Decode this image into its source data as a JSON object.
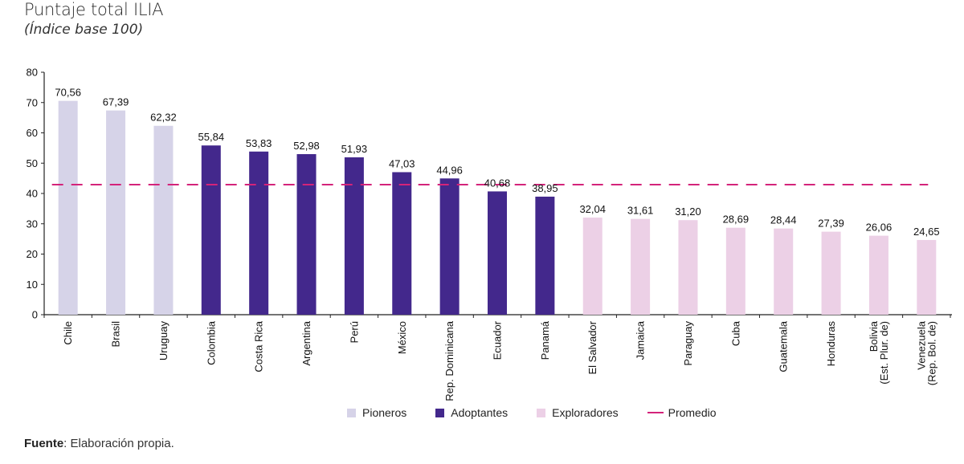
{
  "header": {
    "title": "Puntaje total ILIA",
    "subtitle": "(Índice base 100)"
  },
  "chart_data": {
    "type": "bar",
    "title": "Puntaje total ILIA",
    "subtitle": "(Índice base 100)",
    "xlabel": "",
    "ylabel": "",
    "ylim": [
      0,
      80
    ],
    "yticks": [
      0,
      10,
      20,
      30,
      40,
      50,
      60,
      70,
      80
    ],
    "grid": false,
    "categories": [
      "Chile",
      "Brasil",
      "Uruguay",
      "Colombia",
      "Costa Rica",
      "Argentina",
      "Perú",
      "México",
      "Rep. Dominicana",
      "Ecuador",
      "Panamá",
      "El Salvador",
      "Jamaica",
      "Paraguay",
      "Cuba",
      "Guatemala",
      "Honduras",
      "Bolivia (Est. Plur. de)",
      "Venezuela (Rep. Bol. de)"
    ],
    "category_lines": [
      [
        "Chile"
      ],
      [
        "Brasil"
      ],
      [
        "Uruguay"
      ],
      [
        "Colombia"
      ],
      [
        "Costa Rica"
      ],
      [
        "Argentina"
      ],
      [
        "Perú"
      ],
      [
        "México"
      ],
      [
        "Rep. Dominicana"
      ],
      [
        "Ecuador"
      ],
      [
        "Panamá"
      ],
      [
        "El Salvador"
      ],
      [
        "Jamaica"
      ],
      [
        "Paraguay"
      ],
      [
        "Cuba"
      ],
      [
        "Guatemala"
      ],
      [
        "Honduras"
      ],
      [
        "Bolivia",
        "(Est. Plur. de)"
      ],
      [
        "Venezuela",
        "(Rep. Bol. de)"
      ]
    ],
    "values": [
      70.56,
      67.39,
      62.32,
      55.84,
      53.83,
      52.98,
      51.93,
      47.03,
      44.96,
      40.68,
      38.95,
      32.04,
      31.61,
      31.2,
      28.69,
      28.44,
      27.39,
      26.06,
      24.65
    ],
    "value_labels": [
      "70,56",
      "67,39",
      "62,32",
      "55,84",
      "53,83",
      "52,98",
      "51,93",
      "47,03",
      "44,96",
      "40,68",
      "38,95",
      "32,04",
      "31,61",
      "31,20",
      "28,69",
      "28,44",
      "27,39",
      "26,06",
      "24,65"
    ],
    "groups": [
      "Pioneros",
      "Pioneros",
      "Pioneros",
      "Adoptantes",
      "Adoptantes",
      "Adoptantes",
      "Adoptantes",
      "Adoptantes",
      "Adoptantes",
      "Adoptantes",
      "Adoptantes",
      "Exploradores",
      "Exploradores",
      "Exploradores",
      "Exploradores",
      "Exploradores",
      "Exploradores",
      "Exploradores",
      "Exploradores"
    ],
    "group_colors": {
      "Pioneros": "#d6d3e8",
      "Adoptantes": "#43288c",
      "Exploradores": "#ecd0e6"
    },
    "average": {
      "name": "Promedio",
      "value": 42.9,
      "color": "#d4237a",
      "style": "dashed"
    },
    "legend": [
      {
        "label": "Pioneros",
        "kind": "box",
        "color": "#d6d3e8"
      },
      {
        "label": "Adoptantes",
        "kind": "box",
        "color": "#43288c"
      },
      {
        "label": "Exploradores",
        "kind": "box",
        "color": "#ecd0e6"
      },
      {
        "label": "Promedio",
        "kind": "line",
        "color": "#d4237a"
      }
    ],
    "legend_position": "bottom-center"
  },
  "footer": {
    "source_label": "Fuente",
    "source_text": ": Elaboración propia."
  }
}
